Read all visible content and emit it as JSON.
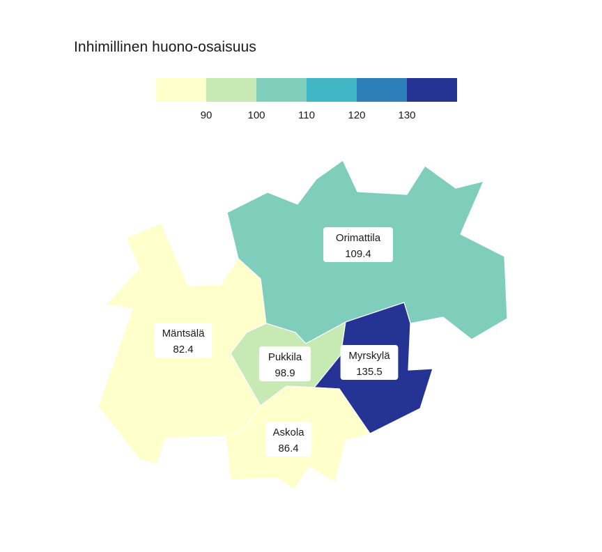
{
  "title": "Inhimillinen huono-osaisuus",
  "legend": {
    "colors": [
      "#ffffcc",
      "#c7e9b4",
      "#7fcdbb",
      "#41b6c4",
      "#2c7fb8",
      "#253494"
    ],
    "ticks": [
      "90",
      "100",
      "110",
      "120",
      "130"
    ]
  },
  "regions": [
    {
      "name": "Orimattila",
      "value": "109.4",
      "color": "#7fcdbb"
    },
    {
      "name": "Mäntsälä",
      "value": "82.4",
      "color": "#ffffcc"
    },
    {
      "name": "Pukkila",
      "value": "98.9",
      "color": "#c7e9b4"
    },
    {
      "name": "Myrskylä",
      "value": "135.5",
      "color": "#253494"
    },
    {
      "name": "Askola",
      "value": "86.4",
      "color": "#ffffcc"
    }
  ]
}
